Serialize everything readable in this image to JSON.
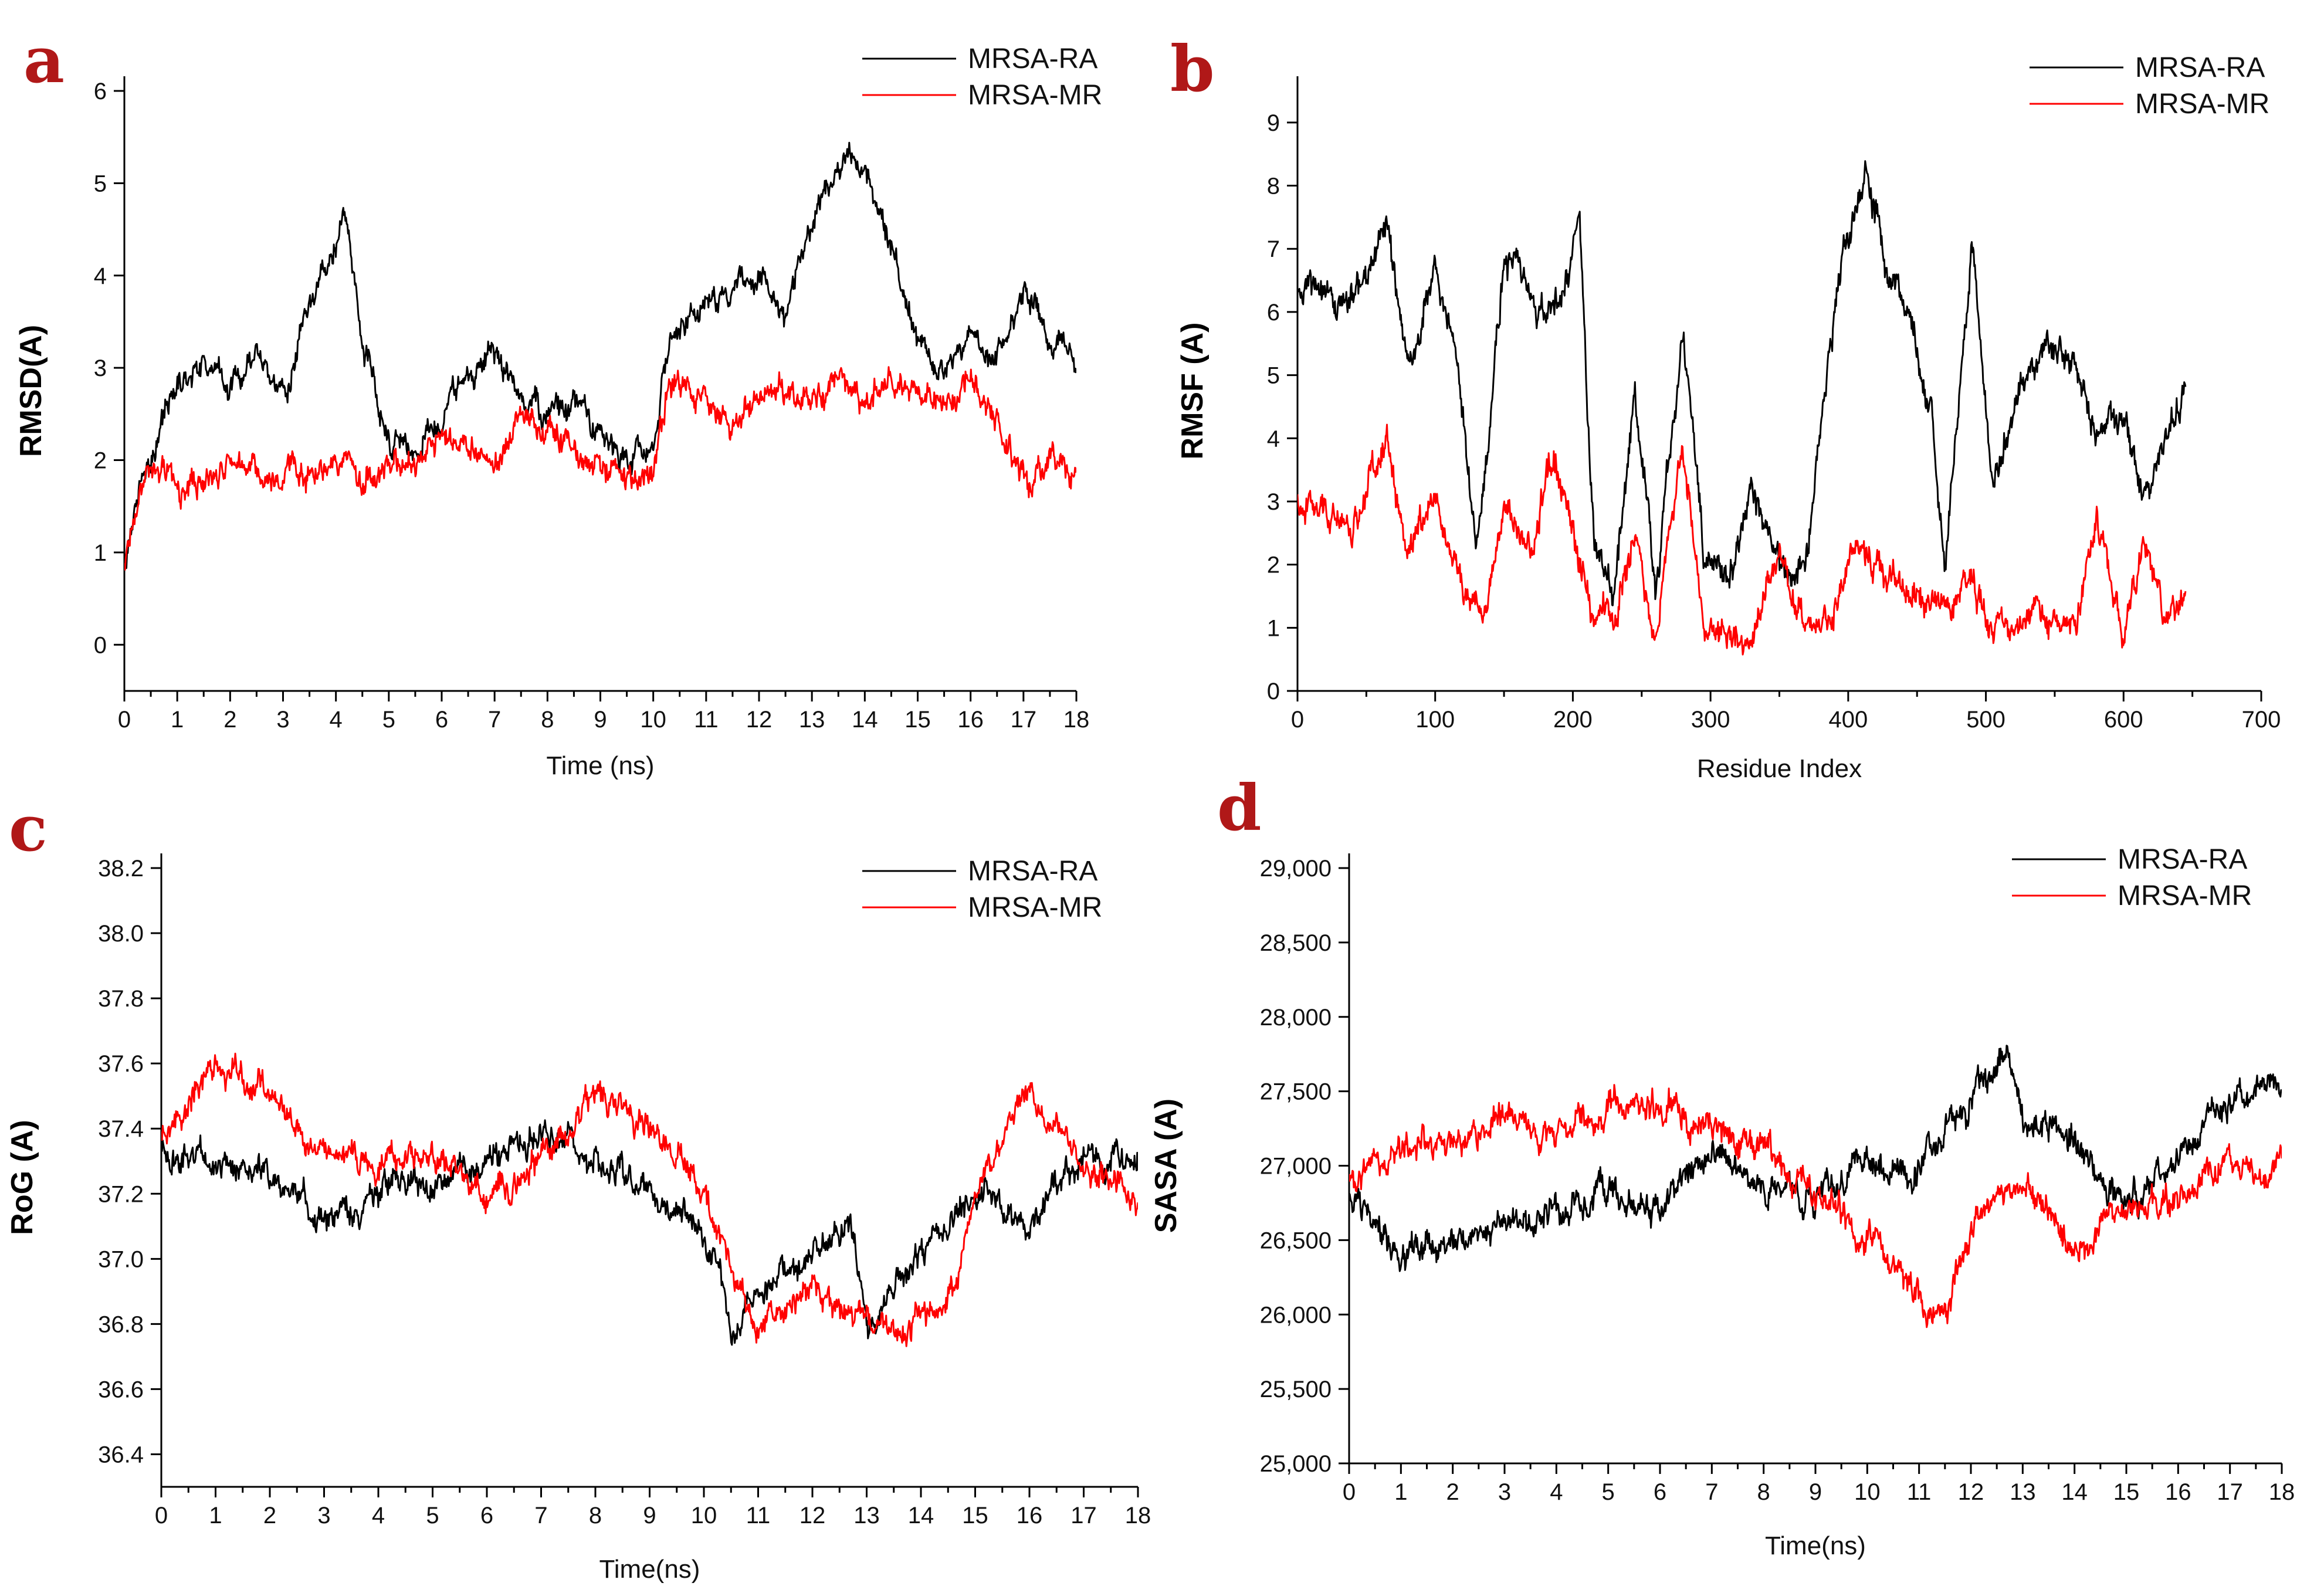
{
  "colors": {
    "series_ra": "#000000",
    "series_mr": "#ff0000",
    "panel_letter": "#b01818"
  },
  "chart_data": [
    {
      "panel": "a",
      "type": "line",
      "title": "",
      "xlabel": "Time (ns)",
      "ylabel": "RMSD(A)",
      "xlim": [
        0,
        18
      ],
      "ylim": [
        -0.5,
        6
      ],
      "xticks": [
        0,
        1,
        2,
        3,
        4,
        5,
        6,
        7,
        8,
        9,
        10,
        11,
        12,
        13,
        14,
        15,
        16,
        17,
        18
      ],
      "yticks": [
        0,
        1,
        2,
        3,
        4,
        5,
        6
      ],
      "xtick_labels": [
        "0",
        "1",
        "2",
        "3",
        "4",
        "5",
        "6",
        "7",
        "8",
        "9",
        "10",
        "11",
        "12",
        "13",
        "14",
        "15",
        "16",
        "17",
        "18"
      ],
      "ytick_labels": [
        "0",
        "1",
        "2",
        "3",
        "4",
        "5",
        "6"
      ],
      "noise": 0.22,
      "series": [
        {
          "name": "MRSA-RA",
          "color": "#000000",
          "x": [
            0,
            0.3,
            0.6,
            1,
            1.5,
            2,
            2.5,
            3,
            3.5,
            4,
            4.2,
            4.5,
            5,
            5.5,
            6,
            6.5,
            7,
            7.5,
            8,
            8.5,
            9,
            9.5,
            10,
            10.3,
            11,
            11.5,
            12,
            12.5,
            13,
            13.5,
            14,
            14.5,
            15,
            15.5,
            16,
            16.5,
            17,
            17.5,
            18
          ],
          "y": [
            0.8,
            1.8,
            2.2,
            2.8,
            3.1,
            2.8,
            3.1,
            2.7,
            3.6,
            4.3,
            4.6,
            3.2,
            2.3,
            2.0,
            2.5,
            2.9,
            3.2,
            2.7,
            2.5,
            2.6,
            2.3,
            2.1,
            2.1,
            3.3,
            3.6,
            3.9,
            4.0,
            3.5,
            4.6,
            5.2,
            5.2,
            4.3,
            3.3,
            2.9,
            3.4,
            3.1,
            3.8,
            3.3,
            3.1
          ]
        },
        {
          "name": "MRSA-MR",
          "color": "#ff0000",
          "x": [
            0,
            0.3,
            0.6,
            1,
            1.5,
            2,
            2.5,
            3,
            3.5,
            4,
            4.5,
            5,
            5.5,
            6,
            6.5,
            7,
            7.5,
            8,
            8.5,
            9,
            9.5,
            10,
            10.3,
            11,
            11.5,
            12,
            12.5,
            13,
            13.5,
            14,
            14.5,
            15,
            15.5,
            16,
            16.5,
            17,
            17.5,
            18
          ],
          "y": [
            0.8,
            1.8,
            2.1,
            1.7,
            1.8,
            2.0,
            1.8,
            1.9,
            1.9,
            2.1,
            1.8,
            2.0,
            2.0,
            2.3,
            2.2,
            2.0,
            2.4,
            2.3,
            2.0,
            1.9,
            1.8,
            1.9,
            2.8,
            2.6,
            2.3,
            2.7,
            2.8,
            2.6,
            2.8,
            2.7,
            2.9,
            2.7,
            2.6,
            2.9,
            2.3,
            1.8,
            1.9,
            1.9
          ]
        }
      ],
      "legend": [
        "MRSA-RA",
        "MRSA-MR"
      ]
    },
    {
      "panel": "b",
      "type": "line",
      "title": "",
      "xlabel": "Residue Index",
      "ylabel": "RMSF (A)",
      "xlim": [
        0,
        700
      ],
      "ylim": [
        0,
        9.5
      ],
      "xticks": [
        0,
        100,
        200,
        300,
        400,
        500,
        600,
        700
      ],
      "yticks": [
        0,
        1,
        2,
        3,
        4,
        5,
        6,
        7,
        8,
        9
      ],
      "xtick_labels": [
        "0",
        "100",
        "200",
        "300",
        "400",
        "500",
        "600",
        "700"
      ],
      "ytick_labels": [
        "0",
        "1",
        "2",
        "3",
        "4",
        "5",
        "6",
        "7",
        "8",
        "9"
      ],
      "noise": 0.25,
      "series": [
        {
          "name": "MRSA-RA",
          "color": "#000000",
          "x": [
            0,
            20,
            40,
            65,
            80,
            100,
            115,
            130,
            150,
            160,
            175,
            190,
            205,
            215,
            230,
            245,
            260,
            280,
            295,
            310,
            330,
            350,
            370,
            385,
            400,
            415,
            430,
            445,
            460,
            470,
            490,
            505,
            525,
            545,
            565,
            580,
            600,
            615,
            630,
            645
          ],
          "y": [
            6.3,
            6.2,
            6.3,
            7.2,
            5.1,
            6.8,
            5.3,
            2.2,
            6.8,
            6.6,
            5.8,
            6.2,
            7.4,
            2.2,
            1.4,
            4.8,
            1.6,
            5.8,
            2.2,
            1.6,
            3.1,
            1.8,
            2.1,
            5.2,
            7.4,
            8.2,
            6.4,
            5.8,
            4.5,
            2.0,
            7.0,
            3.2,
            4.8,
            5.6,
            5.2,
            4.2,
            4.4,
            3.0,
            4.1,
            4.6
          ]
        },
        {
          "name": "MRSA-MR",
          "color": "#ff0000",
          "x": [
            0,
            20,
            40,
            65,
            80,
            100,
            120,
            135,
            150,
            170,
            185,
            200,
            215,
            230,
            245,
            260,
            280,
            295,
            310,
            330,
            350,
            370,
            385,
            400,
            415,
            430,
            450,
            470,
            490,
            505,
            525,
            545,
            565,
            580,
            600,
            615,
            630,
            645
          ],
          "y": [
            3.0,
            2.8,
            2.6,
            4.0,
            2.3,
            3.2,
            1.6,
            1.1,
            2.8,
            2.3,
            3.8,
            2.6,
            1.1,
            1.0,
            2.6,
            1.0,
            3.9,
            1.0,
            1.0,
            0.8,
            2.2,
            0.8,
            1.1,
            2.0,
            2.3,
            1.8,
            1.5,
            1.4,
            1.6,
            0.9,
            1.1,
            1.3,
            1.2,
            2.6,
            0.9,
            2.3,
            1.1,
            1.6
          ]
        }
      ],
      "legend": [
        "MRSA-RA",
        "MRSA-MR"
      ]
    },
    {
      "panel": "c",
      "type": "line",
      "title": "",
      "xlabel": "Time(ns)",
      "ylabel": "RoG (A)",
      "xlim": [
        0,
        18
      ],
      "ylim": [
        36.3,
        38.2
      ],
      "xticks": [
        0,
        1,
        2,
        3,
        4,
        5,
        6,
        7,
        8,
        9,
        10,
        11,
        12,
        13,
        14,
        15,
        16,
        17,
        18
      ],
      "yticks": [
        36.4,
        36.6,
        36.8,
        37.0,
        37.2,
        37.4,
        37.6,
        37.8,
        38.0,
        38.2
      ],
      "xtick_labels": [
        "0",
        "1",
        "2",
        "3",
        "4",
        "5",
        "6",
        "7",
        "8",
        "9",
        "10",
        "11",
        "12",
        "13",
        "14",
        "15",
        "16",
        "17",
        "18"
      ],
      "ytick_labels": [
        "36.4",
        "36.6",
        "36.8",
        "37.0",
        "37.2",
        "37.4",
        "37.6",
        "37.8",
        "38.0",
        "38.2"
      ],
      "noise": 0.22,
      "series": [
        {
          "name": "MRSA-RA",
          "color": "#000000",
          "x": [
            0,
            1,
            2,
            3,
            4,
            5,
            6,
            7,
            8,
            9,
            10,
            10.5,
            11,
            12,
            12.7,
            13,
            14,
            15,
            16,
            17,
            18
          ],
          "y": [
            37.35,
            37.3,
            37.25,
            37.1,
            37.2,
            37.25,
            37.3,
            37.4,
            37.3,
            37.2,
            37.1,
            36.8,
            36.9,
            37.0,
            37.1,
            36.8,
            37.0,
            37.2,
            37.1,
            37.3,
            37.3
          ]
        },
        {
          "name": "MRSA-MR",
          "color": "#ff0000",
          "x": [
            0,
            1,
            2,
            3,
            4,
            5,
            6,
            7,
            8,
            9,
            10,
            10.5,
            11,
            12,
            13,
            14,
            14.5,
            15,
            16,
            17,
            18
          ],
          "y": [
            37.4,
            37.6,
            37.5,
            37.3,
            37.3,
            37.35,
            37.2,
            37.3,
            37.5,
            37.4,
            37.2,
            36.95,
            36.8,
            36.9,
            36.8,
            36.8,
            36.85,
            37.2,
            37.5,
            37.3,
            37.2
          ]
        }
      ],
      "legend": [
        "MRSA-RA",
        "MRSA-MR"
      ]
    },
    {
      "panel": "d",
      "type": "line",
      "title": "",
      "xlabel": "Time(ns)",
      "ylabel": "SASA (A)",
      "xlim": [
        0,
        18
      ],
      "ylim": [
        25000,
        29000
      ],
      "xticks": [
        0,
        1,
        2,
        3,
        4,
        5,
        6,
        7,
        8,
        9,
        10,
        11,
        12,
        13,
        14,
        15,
        16,
        17,
        18
      ],
      "yticks": [
        25000,
        25500,
        26000,
        26500,
        27000,
        27500,
        28000,
        28500,
        29000
      ],
      "xtick_labels": [
        "0",
        "1",
        "2",
        "3",
        "4",
        "5",
        "6",
        "7",
        "8",
        "9",
        "10",
        "11",
        "12",
        "13",
        "14",
        "15",
        "16",
        "17",
        "18"
      ],
      "ytick_labels": [
        "25,000",
        "25,500",
        "26,000",
        "26,500",
        "27,000",
        "27,500",
        "28,000",
        "28,500",
        "29,000"
      ],
      "noise": 0.24,
      "series": [
        {
          "name": "MRSA-RA",
          "color": "#000000",
          "x": [
            0,
            1,
            2,
            3,
            4,
            5,
            6,
            7,
            8,
            9,
            10,
            11,
            12,
            12.7,
            13,
            14,
            15,
            16,
            17,
            18
          ],
          "y": [
            26800,
            26400,
            26500,
            26600,
            26700,
            26800,
            26700,
            27100,
            26900,
            26800,
            27000,
            27000,
            27400,
            27800,
            27300,
            27200,
            26700,
            27100,
            27400,
            27600
          ]
        },
        {
          "name": "MRSA-MR",
          "color": "#ff0000",
          "x": [
            0,
            1,
            2,
            3,
            4,
            5,
            6,
            7,
            8,
            9,
            10,
            11,
            11.5,
            12,
            13,
            14,
            15,
            16,
            17,
            18
          ],
          "y": [
            26900,
            27100,
            27200,
            27300,
            27200,
            27400,
            27400,
            27200,
            27100,
            26800,
            26500,
            26200,
            26000,
            26600,
            26900,
            26400,
            26700,
            26800,
            27000,
            27000
          ]
        }
      ],
      "legend": [
        "MRSA-RA",
        "MRSA-MR"
      ]
    }
  ]
}
